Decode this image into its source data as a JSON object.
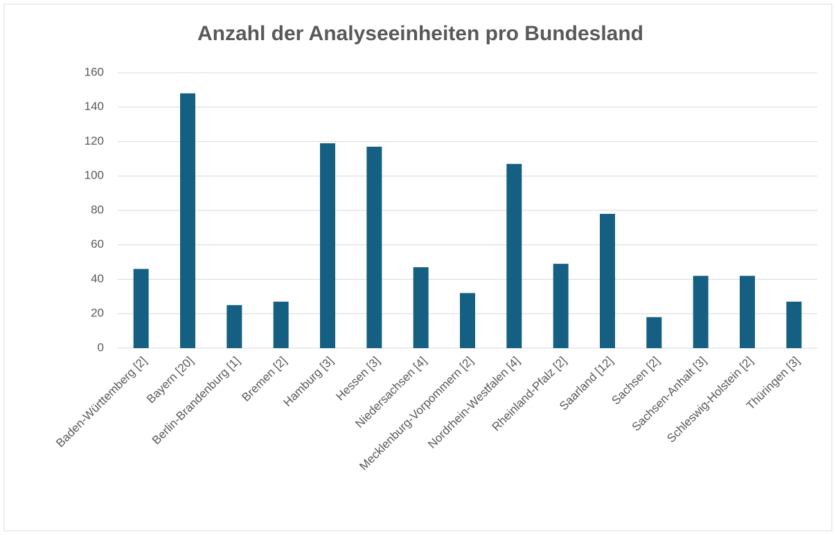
{
  "chart_data": {
    "type": "bar",
    "title": "Anzahl der Analyseeinheiten pro Bundesland",
    "categories": [
      "Baden-Württemberg [2]",
      "Bayern [20]",
      "Berlin-Brandenburg [1]",
      "Bremen [2]",
      "Hamburg [3]",
      "Hessen [3]",
      "Niedersachsen [4]",
      "Mecklenburg-Vorpommern [2]",
      "Nordrhein-Westfalen [4]",
      "Rheinland-Pfalz [2]",
      "Saarland [12]",
      "Sachsen [2]",
      "Sachsen-Anhalt [3]",
      "Schleswig-Holstein [2]",
      "Thüringen [3]"
    ],
    "values": [
      46,
      148,
      25,
      27,
      119,
      117,
      47,
      32,
      107,
      49,
      78,
      18,
      42,
      42,
      27
    ],
    "color": "#156082",
    "ylim": [
      0,
      160
    ],
    "yticks": [
      0,
      20,
      40,
      60,
      80,
      100,
      120,
      140,
      160
    ],
    "grid": true
  }
}
